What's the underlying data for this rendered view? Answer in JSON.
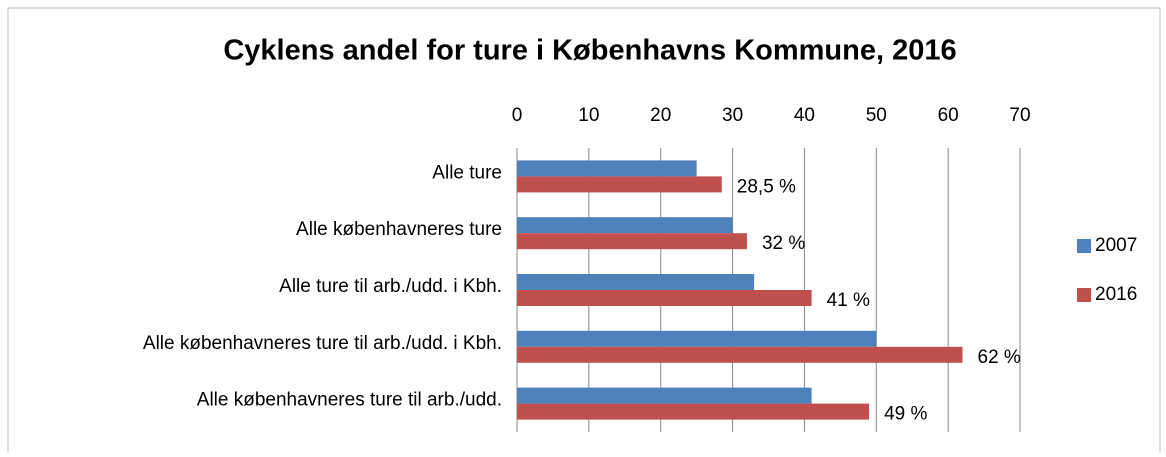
{
  "chart_data": {
    "type": "bar",
    "orientation": "horizontal",
    "title": "Cyklens andel for ture i Københavns Kommune, 2016",
    "categories": [
      "Alle ture",
      "Alle københavneres ture",
      "Alle ture til arb./udd. i Kbh.",
      "Alle københavneres ture til arb./udd. i Kbh.",
      "Alle københavneres ture til arb./udd."
    ],
    "series": [
      {
        "name": "2007",
        "color": "#4f81bd",
        "values": [
          25,
          30,
          33,
          50,
          41
        ]
      },
      {
        "name": "2016",
        "color": "#c0504d",
        "values": [
          28.5,
          32,
          41,
          62,
          49
        ],
        "value_labels": [
          "28,5 %",
          "32 %",
          "41 %",
          "62 %",
          "49 %"
        ]
      }
    ],
    "xlim": [
      0,
      70
    ],
    "xticks": [
      0,
      10,
      20,
      30,
      40,
      50,
      60,
      70
    ],
    "grid": true,
    "legend": "right"
  }
}
